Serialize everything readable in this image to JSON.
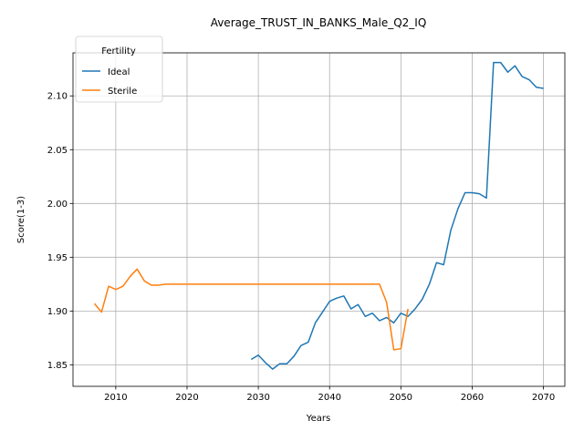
{
  "chart_data": {
    "type": "line",
    "title": "Average_TRUST_IN_BANKS_Male_Q2_IQ",
    "xlabel": "Years",
    "ylabel": "Score(1-3)",
    "xlim": [
      2004,
      2073
    ],
    "ylim": [
      1.83,
      2.14
    ],
    "xticks": [
      2010,
      2020,
      2030,
      2040,
      2050,
      2060,
      2070
    ],
    "yticks": [
      1.85,
      1.9,
      1.95,
      2.0,
      2.05,
      2.1
    ],
    "ytick_labels": [
      "1.85",
      "1.90",
      "1.95",
      "2.00",
      "2.05",
      "2.10"
    ],
    "grid": true,
    "legend": {
      "title": "Fertility",
      "placement": "top-left"
    },
    "series": [
      {
        "name": "Ideal",
        "color": "#1f77b4",
        "x": [
          2029,
          2030,
          2031,
          2032,
          2033,
          2034,
          2035,
          2036,
          2037,
          2038,
          2039,
          2040,
          2041,
          2042,
          2043,
          2044,
          2045,
          2046,
          2047,
          2048,
          2049,
          2050,
          2051,
          2052,
          2053,
          2054,
          2055,
          2056,
          2057,
          2058,
          2059,
          2060,
          2061,
          2062,
          2063,
          2064,
          2065,
          2066,
          2067,
          2068,
          2069,
          2070
        ],
        "y": [
          1.855,
          1.859,
          1.852,
          1.846,
          1.851,
          1.851,
          1.858,
          1.868,
          1.871,
          1.889,
          1.899,
          1.909,
          1.912,
          1.914,
          1.902,
          1.906,
          1.895,
          1.898,
          1.891,
          1.894,
          1.889,
          1.898,
          1.895,
          1.902,
          1.911,
          1.925,
          1.945,
          1.943,
          1.975,
          1.995,
          2.01,
          2.01,
          2.009,
          2.005,
          2.131,
          2.131,
          2.122,
          2.128,
          2.118,
          2.115,
          2.108,
          2.107
        ]
      },
      {
        "name": "Sterile",
        "color": "#ff7f0e",
        "x": [
          2007,
          2008,
          2009,
          2010,
          2011,
          2012,
          2013,
          2014,
          2015,
          2016,
          2017,
          2018,
          2019,
          2020,
          2021,
          2022,
          2023,
          2024,
          2025,
          2026,
          2027,
          2028,
          2029,
          2030,
          2031,
          2032,
          2033,
          2034,
          2035,
          2036,
          2037,
          2038,
          2039,
          2040,
          2041,
          2042,
          2043,
          2044,
          2045,
          2046,
          2047,
          2048,
          2049,
          2050,
          2051
        ],
        "y": [
          1.907,
          1.899,
          1.923,
          1.92,
          1.923,
          1.932,
          1.939,
          1.928,
          1.924,
          1.924,
          1.925,
          1.925,
          1.925,
          1.925,
          1.925,
          1.925,
          1.925,
          1.925,
          1.925,
          1.925,
          1.925,
          1.925,
          1.925,
          1.925,
          1.925,
          1.925,
          1.925,
          1.925,
          1.925,
          1.925,
          1.925,
          1.925,
          1.925,
          1.925,
          1.925,
          1.925,
          1.925,
          1.925,
          1.925,
          1.925,
          1.925,
          1.908,
          1.864,
          1.865,
          1.902
        ]
      }
    ]
  }
}
